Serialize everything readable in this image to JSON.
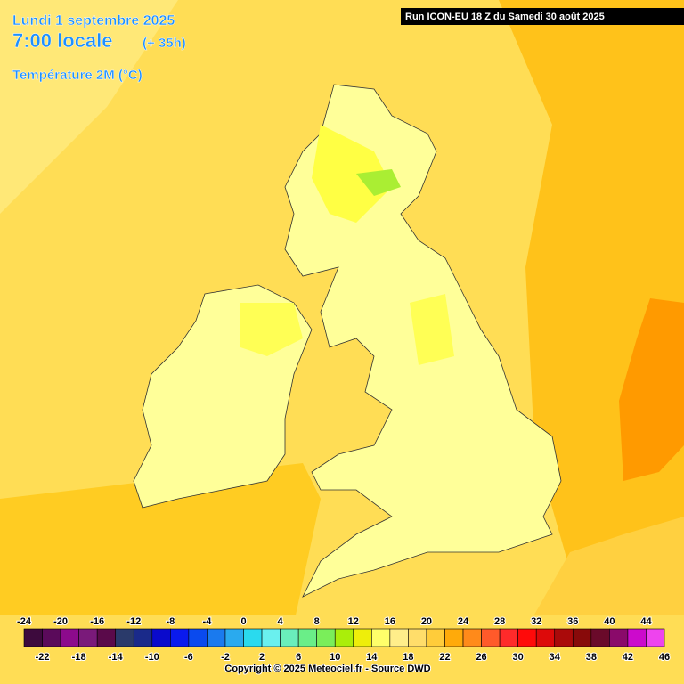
{
  "header": {
    "date": "Lundi 1 septembre 2025",
    "time": "7:00 locale",
    "lead": "(+ 35h)",
    "field": "Température 2M (°C)",
    "run": "Run ICON-EU 18 Z du Samedi 30 août 2025"
  },
  "legend": {
    "ticks": [
      -24,
      -22,
      -20,
      -18,
      -16,
      -14,
      -12,
      -10,
      -8,
      -6,
      -4,
      -2,
      0,
      2,
      4,
      6,
      8,
      10,
      12,
      14,
      16,
      18,
      20,
      22,
      24,
      26,
      28,
      30,
      32,
      34,
      36,
      38,
      40,
      42,
      44,
      46
    ],
    "colors": [
      "#3d0a3d",
      "#5a0a5a",
      "#8c0a8c",
      "#7a1a7a",
      "#5a0a4a",
      "#2a3a6a",
      "#1a2a8a",
      "#0a0acc",
      "#0a1aee",
      "#0a4aee",
      "#1a7aee",
      "#2aaaee",
      "#2adaee",
      "#6af0ee",
      "#6aeebb",
      "#6aee88",
      "#7aee5a",
      "#aaee0a",
      "#eeee0a",
      "#ffff6a",
      "#ffee8a",
      "#ffdd6a",
      "#ffcc3a",
      "#ffaa0a",
      "#ff8a1a",
      "#ff5a2a",
      "#ff2a2a",
      "#ff0a0a",
      "#dd0a0a",
      "#aa0a0a",
      "#880a0a",
      "#6a0a2a",
      "#8a0a6a",
      "#cc0acc",
      "#ee44ee",
      "#ff88ff"
    ]
  },
  "footer": {
    "copyright": "Copyright © 2025 Meteociel.fr - Source DWD"
  }
}
